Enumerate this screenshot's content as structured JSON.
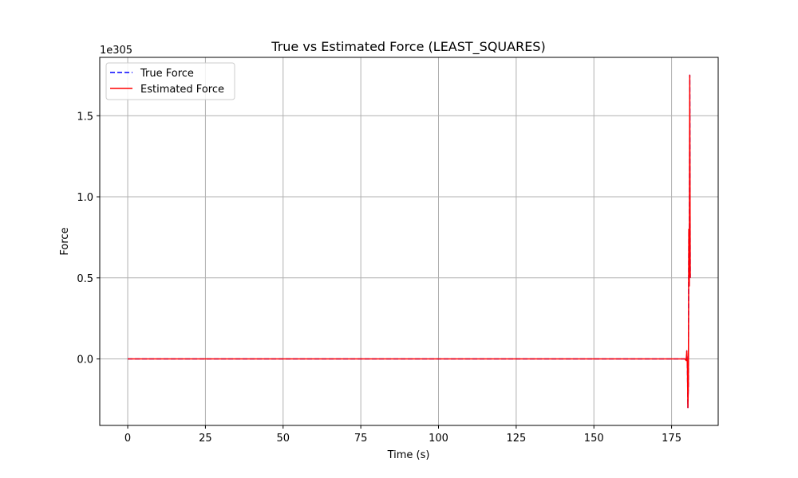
{
  "chart_data": {
    "type": "line",
    "title": "True vs Estimated Force (LEAST_SQUARES)",
    "xlabel": "Time (s)",
    "ylabel": "Force",
    "y_offset_label": "1e305",
    "xlim": [
      -9,
      190
    ],
    "ylim": [
      -0.41,
      1.86
    ],
    "y_scale_note": "values in units of 1e305",
    "xticks": [
      0,
      25,
      50,
      75,
      100,
      125,
      150,
      175
    ],
    "yticks": [
      0.0,
      0.5,
      1.0,
      1.5
    ],
    "ytick_labels": [
      "0.0",
      "0.5",
      "1.0",
      "1.5"
    ],
    "grid": true,
    "legend_position": "top-left",
    "series": [
      {
        "name": "True Force",
        "color": "#0000ff",
        "style": "dashed",
        "x": [
          0,
          50,
          100,
          150,
          179.3,
          179.7,
          179.9,
          180.1,
          180.25,
          180.4,
          180.55,
          180.7,
          180.85,
          181.0
        ],
        "y": [
          0,
          0,
          0,
          0,
          0,
          -0.01,
          0.05,
          -0.05,
          -0.3,
          -0.15,
          0.8,
          0.45,
          1.75,
          0.5
        ]
      },
      {
        "name": "Estimated Force",
        "color": "#ff0000",
        "style": "solid",
        "x": [
          0,
          50,
          100,
          150,
          179.3,
          179.7,
          179.9,
          180.1,
          180.25,
          180.4,
          180.55,
          180.7,
          180.85,
          181.0
        ],
        "y": [
          0,
          0,
          0,
          0,
          0,
          -0.01,
          0.05,
          -0.05,
          -0.3,
          -0.15,
          0.8,
          0.45,
          1.75,
          0.5
        ]
      }
    ]
  }
}
